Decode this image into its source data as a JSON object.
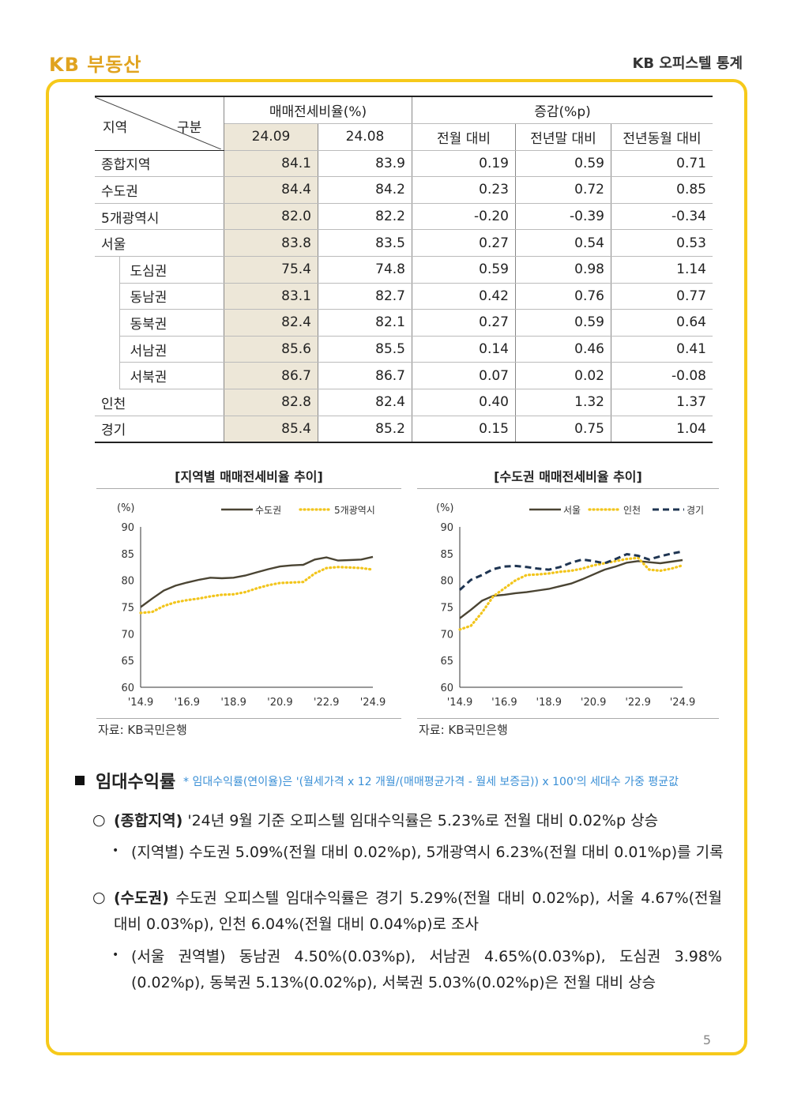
{
  "header": {
    "logo": "KB 부동산",
    "title": "KB 오피스텔 통계"
  },
  "table": {
    "corner_left": "지역",
    "corner_right": "구분",
    "group1": "매매전세비율(%)",
    "group2": "증감(%p)",
    "cols": [
      "24.09",
      "24.08",
      "전월 대비",
      "전년말 대비",
      "전년동월 대비"
    ],
    "rows": [
      {
        "region": "종합지역",
        "sub": "",
        "v": [
          "84.1",
          "83.9",
          "0.19",
          "0.59",
          "0.71"
        ]
      },
      {
        "region": "수도권",
        "sub": "",
        "v": [
          "84.4",
          "84.2",
          "0.23",
          "0.72",
          "0.85"
        ]
      },
      {
        "region": "5개광역시",
        "sub": "",
        "v": [
          "82.0",
          "82.2",
          "-0.20",
          "-0.39",
          "-0.34"
        ]
      },
      {
        "region": "서울",
        "sub": "",
        "v": [
          "83.8",
          "83.5",
          "0.27",
          "0.54",
          "0.53"
        ]
      },
      {
        "region": "",
        "sub": "도심권",
        "v": [
          "75.4",
          "74.8",
          "0.59",
          "0.98",
          "1.14"
        ]
      },
      {
        "region": "",
        "sub": "동남권",
        "v": [
          "83.1",
          "82.7",
          "0.42",
          "0.76",
          "0.77"
        ]
      },
      {
        "region": "",
        "sub": "동북권",
        "v": [
          "82.4",
          "82.1",
          "0.27",
          "0.59",
          "0.64"
        ]
      },
      {
        "region": "",
        "sub": "서남권",
        "v": [
          "85.6",
          "85.5",
          "0.14",
          "0.46",
          "0.41"
        ]
      },
      {
        "region": "",
        "sub": "서북권",
        "v": [
          "86.7",
          "86.7",
          "0.07",
          "0.02",
          "-0.08"
        ]
      },
      {
        "region": "인천",
        "sub": "",
        "v": [
          "82.8",
          "82.4",
          "0.40",
          "1.32",
          "1.37"
        ]
      },
      {
        "region": "경기",
        "sub": "",
        "v": [
          "85.4",
          "85.2",
          "0.15",
          "0.75",
          "1.04"
        ]
      }
    ]
  },
  "chart_data": [
    {
      "type": "line",
      "title": "[지역별 매매전세비율 추이]",
      "ylabel": "(%)",
      "ylim": [
        60,
        90
      ],
      "yticks": [
        "90",
        "85",
        "80",
        "75",
        "70",
        "65",
        "60"
      ],
      "xticks": [
        "'14.9",
        "'16.9",
        "'18.9",
        "'20.9",
        "'22.9",
        "'24.9"
      ],
      "x": [
        2014.75,
        2015.25,
        2015.75,
        2016.25,
        2016.75,
        2017.25,
        2017.75,
        2018.25,
        2018.75,
        2019.25,
        2019.75,
        2020.25,
        2020.75,
        2021.25,
        2021.75,
        2022.25,
        2022.75,
        2023.25,
        2023.75,
        2024.25,
        2024.75
      ],
      "series": [
        {
          "name": "수도권",
          "color": "#4a4433",
          "style": "solid",
          "values": [
            75.0,
            76.6,
            78.1,
            79.0,
            79.6,
            80.1,
            80.5,
            80.4,
            80.5,
            80.9,
            81.5,
            82.1,
            82.6,
            82.8,
            82.9,
            83.9,
            84.3,
            83.7,
            83.8,
            83.9,
            84.4
          ]
        },
        {
          "name": "5개광역시",
          "color": "#f2c51c",
          "style": "dotted",
          "values": [
            73.9,
            74.1,
            75.2,
            75.9,
            76.3,
            76.6,
            77.0,
            77.3,
            77.4,
            77.8,
            78.5,
            79.1,
            79.5,
            79.6,
            79.7,
            81.3,
            82.3,
            82.5,
            82.4,
            82.3,
            82.0
          ]
        }
      ]
    },
    {
      "type": "line",
      "title": "[수도권 매매전세비율 추이]",
      "ylabel": "(%)",
      "ylim": [
        60,
        90
      ],
      "yticks": [
        "90",
        "85",
        "80",
        "75",
        "70",
        "65",
        "60"
      ],
      "xticks": [
        "'14.9",
        "'16.9",
        "'18.9",
        "'20.9",
        "'22.9",
        "'24.9"
      ],
      "x": [
        2014.75,
        2015.25,
        2015.75,
        2016.25,
        2016.75,
        2017.25,
        2017.75,
        2018.25,
        2018.75,
        2019.25,
        2019.75,
        2020.25,
        2020.75,
        2021.25,
        2021.75,
        2022.25,
        2022.75,
        2023.25,
        2023.75,
        2024.25,
        2024.75
      ],
      "series": [
        {
          "name": "서울",
          "color": "#4a4433",
          "style": "solid",
          "values": [
            72.9,
            74.5,
            76.2,
            77.1,
            77.3,
            77.6,
            77.8,
            78.1,
            78.4,
            78.9,
            79.4,
            80.2,
            81.1,
            82.0,
            82.6,
            83.3,
            83.6,
            83.4,
            83.2,
            83.5,
            83.8
          ]
        },
        {
          "name": "인천",
          "color": "#f2c51c",
          "style": "dotted",
          "values": [
            70.8,
            71.5,
            74.0,
            77.0,
            78.5,
            80.0,
            81.0,
            81.1,
            81.3,
            81.6,
            81.8,
            82.2,
            82.8,
            83.2,
            83.6,
            84.0,
            84.2,
            82.0,
            81.8,
            82.2,
            82.8
          ]
        },
        {
          "name": "경기",
          "color": "#1f3552",
          "style": "dashed",
          "values": [
            78.2,
            80.1,
            81.0,
            82.1,
            82.6,
            82.7,
            82.5,
            82.2,
            82.0,
            82.5,
            83.3,
            83.9,
            83.6,
            83.2,
            84.0,
            84.9,
            84.6,
            83.9,
            84.5,
            85.0,
            85.4
          ]
        }
      ]
    }
  ],
  "sources": [
    "자료: KB국민은행",
    "자료: KB국민은행"
  ],
  "section": {
    "title": "임대수익률",
    "note": "* 임대수익률(연이율)은 '(월세가격 x 12 개월/(매매평균가격 - 월세 보증금)) x 100'의 세대수 가중 평균값",
    "p1_head": "(종합지역)",
    "p1_text": "'24년 9월 기준 오피스텔 임대수익률은 5.23%로 전월 대비 0.02%p 상승",
    "p1_bullet": "(지역별) 수도권 5.09%(전월 대비 0.02%p), 5개광역시 6.23%(전월 대비 0.01%p)를 기록",
    "p2_head": "(수도권)",
    "p2_text": "수도권 오피스텔 임대수익률은 경기 5.29%(전월 대비 0.02%p), 서울 4.67%(전월 대비 0.03%p), 인천 6.04%(전월 대비 0.04%p)로 조사",
    "p2_bullet": "(서울 권역별) 동남권 4.50%(0.03%p), 서남권 4.65%(0.03%p), 도심권 3.98%(0.02%p), 동북권 5.13%(0.02%p), 서북권 5.03%(0.02%p)은 전월 대비 상승"
  },
  "page_number": "5"
}
